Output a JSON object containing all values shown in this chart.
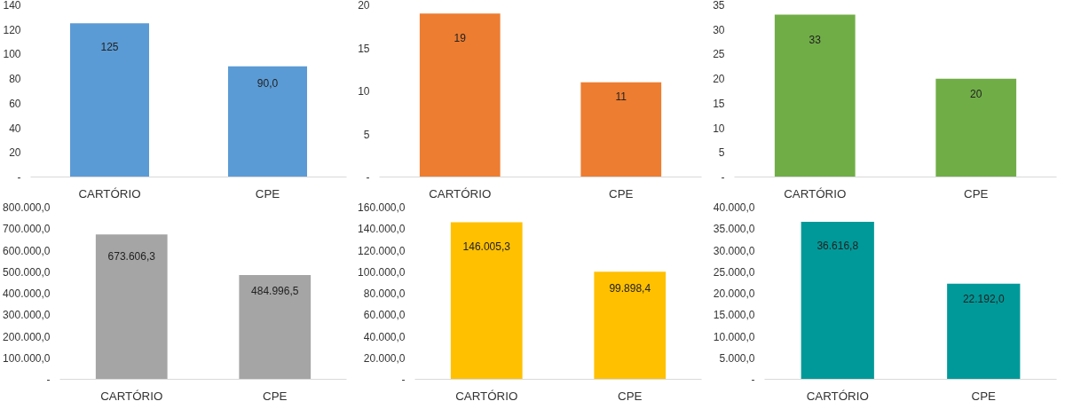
{
  "chart_data": [
    {
      "type": "bar",
      "categories": [
        "CARTÓRIO",
        "CPE"
      ],
      "values": [
        125,
        90.0
      ],
      "value_labels": [
        "125",
        "90,0"
      ],
      "color": "#5b9bd5",
      "ylim": [
        0,
        140
      ],
      "yticks": [
        {
          "value": 0,
          "label": "-"
        },
        20,
        40,
        60,
        80,
        100,
        120,
        140
      ],
      "grid": false
    },
    {
      "type": "bar",
      "categories": [
        "CARTÓRIO",
        "CPE"
      ],
      "values": [
        19,
        11
      ],
      "value_labels": [
        "19",
        "11"
      ],
      "color": "#ed7d31",
      "ylim": [
        0,
        20
      ],
      "yticks": [
        {
          "value": 0,
          "label": "-"
        },
        5,
        10,
        15,
        20
      ],
      "grid": false
    },
    {
      "type": "bar",
      "categories": [
        "CARTÓRIO",
        "CPE"
      ],
      "values": [
        33,
        20
      ],
      "value_labels": [
        "33",
        "20"
      ],
      "color": "#70ad47",
      "ylim": [
        0,
        35
      ],
      "yticks": [
        {
          "value": 0,
          "label": "-"
        },
        5,
        10,
        15,
        20,
        25,
        30,
        35
      ],
      "grid": false
    },
    {
      "type": "bar",
      "categories": [
        "CARTÓRIO",
        "CPE"
      ],
      "values": [
        673606.3,
        484996.5
      ],
      "value_labels": [
        "673.606,3",
        "484.996,5"
      ],
      "color": "#a5a5a5",
      "ylim": [
        0,
        800000
      ],
      "yticks": [
        {
          "value": 0,
          "label": "-"
        },
        {
          "value": 100000,
          "label": "100.000,0"
        },
        {
          "value": 200000,
          "label": "200.000,0"
        },
        {
          "value": 300000,
          "label": "300.000,0"
        },
        {
          "value": 400000,
          "label": "400.000,0"
        },
        {
          "value": 500000,
          "label": "500.000,0"
        },
        {
          "value": 600000,
          "label": "600.000,0"
        },
        {
          "value": 700000,
          "label": "700.000,0"
        },
        {
          "value": 800000,
          "label": "800.000,0"
        }
      ],
      "grid": false
    },
    {
      "type": "bar",
      "categories": [
        "CARTÓRIO",
        "CPE"
      ],
      "values": [
        146005.3,
        99898.4
      ],
      "value_labels": [
        "146.005,3",
        "99.898,4"
      ],
      "color": "#ffc000",
      "ylim": [
        0,
        160000
      ],
      "yticks": [
        {
          "value": 0,
          "label": "-"
        },
        {
          "value": 20000,
          "label": "20.000,0"
        },
        {
          "value": 40000,
          "label": "40.000,0"
        },
        {
          "value": 60000,
          "label": "60.000,0"
        },
        {
          "value": 80000,
          "label": "80.000,0"
        },
        {
          "value": 100000,
          "label": "100.000,0"
        },
        {
          "value": 120000,
          "label": "120.000,0"
        },
        {
          "value": 140000,
          "label": "140.000,0"
        },
        {
          "value": 160000,
          "label": "160.000,0"
        }
      ],
      "grid": false
    },
    {
      "type": "bar",
      "categories": [
        "CARTÓRIO",
        "CPE"
      ],
      "values": [
        36616.8,
        22192.0
      ],
      "value_labels": [
        "36.616,8",
        "22.192,0"
      ],
      "color": "#009999",
      "ylim": [
        0,
        40000
      ],
      "yticks": [
        {
          "value": 0,
          "label": "-"
        },
        {
          "value": 5000,
          "label": "5.000,0"
        },
        {
          "value": 10000,
          "label": "10.000,0"
        },
        {
          "value": 15000,
          "label": "15.000,0"
        },
        {
          "value": 20000,
          "label": "20.000,0"
        },
        {
          "value": 25000,
          "label": "25.000,0"
        },
        {
          "value": 30000,
          "label": "30.000,0"
        },
        {
          "value": 35000,
          "label": "35.000,0"
        },
        {
          "value": 40000,
          "label": "40.000,0"
        }
      ],
      "grid": false
    }
  ]
}
